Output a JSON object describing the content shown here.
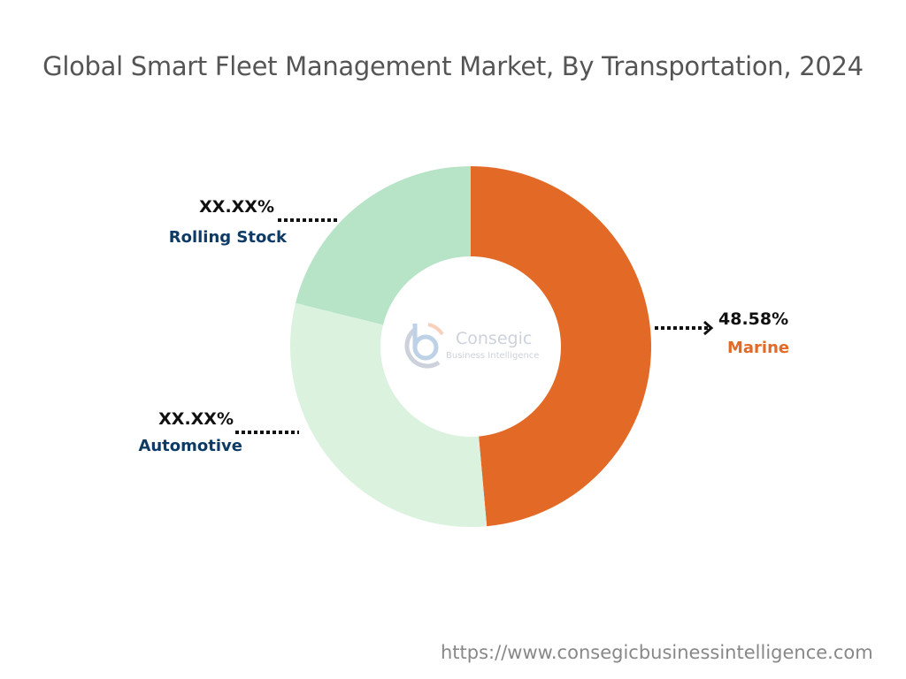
{
  "title": "Global Smart Fleet Management Market, By Transportation, 2024",
  "url": "https://www.consegicbusinessintelligence.com",
  "logo": {
    "name": "Consegic",
    "tagline": "Business Intelligence"
  },
  "chart_data": {
    "type": "pie",
    "donut": true,
    "title": "Global Smart Fleet Management Market, By Transportation, 2024",
    "slices": [
      {
        "label": "Marine",
        "value": 48.58,
        "display": "48.58%",
        "color": "#E36A26",
        "label_color": "#E36A26"
      },
      {
        "label": "Automotive",
        "value": 30.3,
        "display": "XX.XX%",
        "color": "#DBF2DE",
        "label_color": "#0D3B66"
      },
      {
        "label": "Rolling Stock",
        "value": 21.12,
        "display": "XX.XX%",
        "color": "#B7E4C7",
        "label_color": "#0D3B66"
      }
    ]
  }
}
